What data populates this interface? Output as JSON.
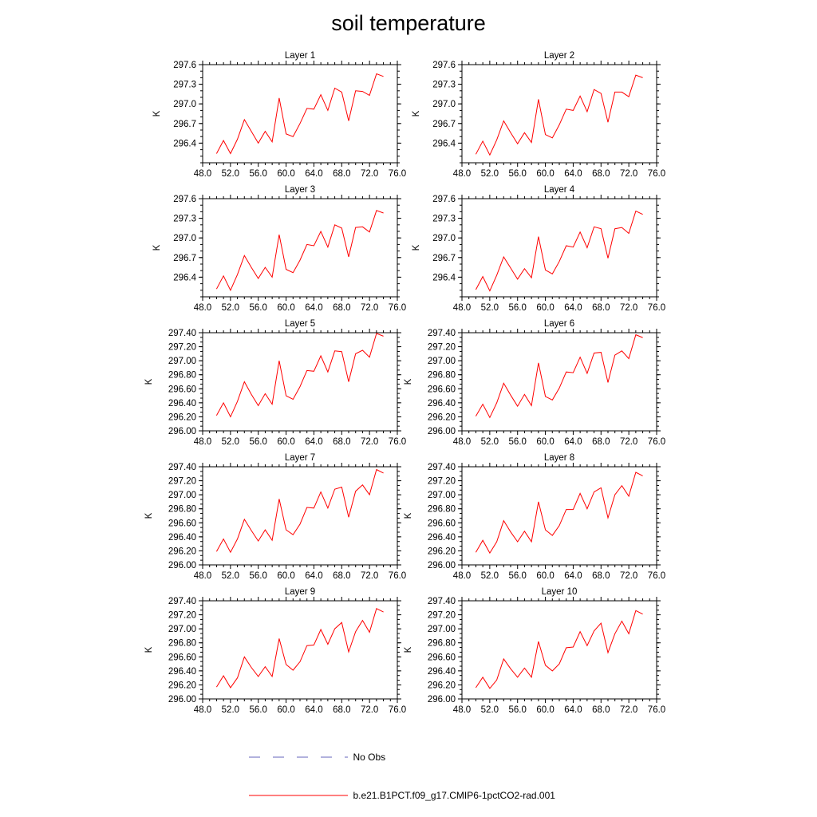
{
  "title": "soil temperature",
  "legend": {
    "items": [
      {
        "label": "No Obs",
        "color": "#6666bb",
        "dashed": true
      },
      {
        "label": "b.e21.B1PCT.f09_g17.CMIP6-1pctCO2-rad.001",
        "color": "#ff0000",
        "dashed": false
      }
    ]
  },
  "chart_data": [
    {
      "type": "line",
      "title": "Layer 1",
      "ylabel": "K",
      "xlim": [
        48,
        76
      ],
      "ylim": [
        296.1,
        297.6
      ],
      "xticks": [
        "48.0",
        "52.0",
        "56.0",
        "60.0",
        "64.0",
        "68.0",
        "72.0",
        "76.0"
      ],
      "yticks": [
        "296.4",
        "296.7",
        "297.0",
        "297.3",
        "297.6"
      ],
      "series": [
        {
          "color": "#ff0000",
          "x": [
            50,
            51,
            52,
            53,
            54,
            55,
            56,
            57,
            58,
            59,
            60,
            61,
            62,
            63,
            64,
            65,
            66,
            67,
            68,
            69,
            70,
            71,
            72,
            73,
            74
          ],
          "y": [
            296.24,
            296.44,
            296.24,
            296.46,
            296.76,
            296.58,
            296.4,
            296.58,
            296.42,
            297.09,
            296.54,
            296.5,
            296.7,
            296.93,
            296.92,
            297.14,
            296.9,
            297.24,
            297.18,
            296.74,
            297.2,
            297.19,
            297.13,
            297.46,
            297.42
          ]
        }
      ]
    },
    {
      "type": "line",
      "title": "Layer 2",
      "ylabel": "K",
      "xlim": [
        48,
        76
      ],
      "ylim": [
        296.1,
        297.6
      ],
      "xticks": [
        "48.0",
        "52.0",
        "56.0",
        "60.0",
        "64.0",
        "68.0",
        "72.0",
        "76.0"
      ],
      "yticks": [
        "296.4",
        "296.7",
        "297.0",
        "297.3",
        "297.6"
      ],
      "series": [
        {
          "color": "#ff0000",
          "x": [
            50,
            51,
            52,
            53,
            54,
            55,
            56,
            57,
            58,
            59,
            60,
            61,
            62,
            63,
            64,
            65,
            66,
            67,
            68,
            69,
            70,
            71,
            72,
            73,
            74
          ],
          "y": [
            296.23,
            296.43,
            296.22,
            296.45,
            296.74,
            296.56,
            296.39,
            296.56,
            296.41,
            297.07,
            296.53,
            296.48,
            296.68,
            296.92,
            296.9,
            297.12,
            296.88,
            297.22,
            297.16,
            296.72,
            297.18,
            297.18,
            297.11,
            297.44,
            297.4
          ]
        }
      ]
    },
    {
      "type": "line",
      "title": "Layer 3",
      "ylabel": "K",
      "xlim": [
        48,
        76
      ],
      "ylim": [
        296.1,
        297.6
      ],
      "xticks": [
        "48.0",
        "52.0",
        "56.0",
        "60.0",
        "64.0",
        "68.0",
        "72.0",
        "76.0"
      ],
      "yticks": [
        "296.4",
        "296.7",
        "297.0",
        "297.3",
        "297.6"
      ],
      "series": [
        {
          "color": "#ff0000",
          "x": [
            50,
            51,
            52,
            53,
            54,
            55,
            56,
            57,
            58,
            59,
            60,
            61,
            62,
            63,
            64,
            65,
            66,
            67,
            68,
            69,
            70,
            71,
            72,
            73,
            74
          ],
          "y": [
            296.22,
            296.42,
            296.2,
            296.44,
            296.73,
            296.55,
            296.38,
            296.55,
            296.4,
            297.05,
            296.52,
            296.47,
            296.66,
            296.9,
            296.88,
            297.1,
            296.86,
            297.2,
            297.15,
            296.71,
            297.16,
            297.17,
            297.09,
            297.42,
            297.38
          ]
        }
      ]
    },
    {
      "type": "line",
      "title": "Layer 4",
      "ylabel": "K",
      "xlim": [
        48,
        76
      ],
      "ylim": [
        296.1,
        297.6
      ],
      "xticks": [
        "48.0",
        "52.0",
        "56.0",
        "60.0",
        "64.0",
        "68.0",
        "72.0",
        "76.0"
      ],
      "yticks": [
        "296.4",
        "296.7",
        "297.0",
        "297.3",
        "297.6"
      ],
      "series": [
        {
          "color": "#ff0000",
          "x": [
            50,
            51,
            52,
            53,
            54,
            55,
            56,
            57,
            58,
            59,
            60,
            61,
            62,
            63,
            64,
            65,
            66,
            67,
            68,
            69,
            70,
            71,
            72,
            73,
            74
          ],
          "y": [
            296.21,
            296.41,
            296.19,
            296.43,
            296.71,
            296.54,
            296.37,
            296.53,
            296.39,
            297.02,
            296.51,
            296.45,
            296.64,
            296.88,
            296.86,
            297.09,
            296.85,
            297.17,
            297.14,
            296.69,
            297.14,
            297.16,
            297.07,
            297.41,
            297.36
          ]
        }
      ]
    },
    {
      "type": "line",
      "title": "Layer 5",
      "ylabel": "K",
      "xlim": [
        48,
        76
      ],
      "ylim": [
        296.0,
        297.4
      ],
      "xticks": [
        "48.0",
        "52.0",
        "56.0",
        "60.0",
        "64.0",
        "68.0",
        "72.0",
        "76.0"
      ],
      "yticks": [
        "296.00",
        "296.20",
        "296.40",
        "296.60",
        "296.80",
        "297.00",
        "297.20",
        "297.40"
      ],
      "series": [
        {
          "color": "#ff0000",
          "x": [
            50,
            51,
            52,
            53,
            54,
            55,
            56,
            57,
            58,
            59,
            60,
            61,
            62,
            63,
            64,
            65,
            66,
            67,
            68,
            69,
            70,
            71,
            72,
            73,
            74
          ],
          "y": [
            296.22,
            296.4,
            296.2,
            296.42,
            296.7,
            296.52,
            296.36,
            296.53,
            296.38,
            297.0,
            296.5,
            296.45,
            296.63,
            296.86,
            296.85,
            297.07,
            296.84,
            297.14,
            297.13,
            296.7,
            297.1,
            297.15,
            297.05,
            297.39,
            297.35
          ]
        }
      ]
    },
    {
      "type": "line",
      "title": "Layer 6",
      "ylabel": "K",
      "xlim": [
        48,
        76
      ],
      "ylim": [
        296.0,
        297.4
      ],
      "xticks": [
        "48.0",
        "52.0",
        "56.0",
        "60.0",
        "64.0",
        "68.0",
        "72.0",
        "76.0"
      ],
      "yticks": [
        "296.00",
        "296.20",
        "296.40",
        "296.60",
        "296.80",
        "297.00",
        "297.20",
        "297.40"
      ],
      "series": [
        {
          "color": "#ff0000",
          "x": [
            50,
            51,
            52,
            53,
            54,
            55,
            56,
            57,
            58,
            59,
            60,
            61,
            62,
            63,
            64,
            65,
            66,
            67,
            68,
            69,
            70,
            71,
            72,
            73,
            74
          ],
          "y": [
            296.21,
            296.38,
            296.19,
            296.4,
            296.68,
            296.51,
            296.35,
            296.52,
            296.36,
            296.97,
            296.49,
            296.44,
            296.61,
            296.84,
            296.83,
            297.05,
            296.82,
            297.11,
            297.12,
            296.69,
            297.08,
            297.14,
            297.03,
            297.37,
            297.33
          ]
        }
      ]
    },
    {
      "type": "line",
      "title": "Layer 7",
      "ylabel": "K",
      "xlim": [
        48,
        76
      ],
      "ylim": [
        296.0,
        297.4
      ],
      "xticks": [
        "48.0",
        "52.0",
        "56.0",
        "60.0",
        "64.0",
        "68.0",
        "72.0",
        "76.0"
      ],
      "yticks": [
        "296.00",
        "296.20",
        "296.40",
        "296.60",
        "296.80",
        "297.00",
        "297.20",
        "297.40"
      ],
      "series": [
        {
          "color": "#ff0000",
          "x": [
            50,
            51,
            52,
            53,
            54,
            55,
            56,
            57,
            58,
            59,
            60,
            61,
            62,
            63,
            64,
            65,
            66,
            67,
            68,
            69,
            70,
            71,
            72,
            73,
            74
          ],
          "y": [
            296.19,
            296.37,
            296.18,
            296.37,
            296.65,
            296.49,
            296.34,
            296.5,
            296.35,
            296.94,
            296.5,
            296.43,
            296.58,
            296.82,
            296.81,
            297.04,
            296.81,
            297.08,
            297.11,
            296.68,
            297.05,
            297.14,
            297.0,
            297.36,
            297.31
          ]
        }
      ]
    },
    {
      "type": "line",
      "title": "Layer 8",
      "ylabel": "K",
      "xlim": [
        48,
        76
      ],
      "ylim": [
        296.0,
        297.4
      ],
      "xticks": [
        "48.0",
        "52.0",
        "56.0",
        "60.0",
        "64.0",
        "68.0",
        "72.0",
        "76.0"
      ],
      "yticks": [
        "296.00",
        "296.20",
        "296.40",
        "296.60",
        "296.80",
        "297.00",
        "297.20",
        "297.40"
      ],
      "series": [
        {
          "color": "#ff0000",
          "x": [
            50,
            51,
            52,
            53,
            54,
            55,
            56,
            57,
            58,
            59,
            60,
            61,
            62,
            63,
            64,
            65,
            66,
            67,
            68,
            69,
            70,
            71,
            72,
            73,
            74
          ],
          "y": [
            296.18,
            296.35,
            296.17,
            296.33,
            296.63,
            296.47,
            296.33,
            296.48,
            296.33,
            296.9,
            296.5,
            296.42,
            296.56,
            296.79,
            296.79,
            297.02,
            296.8,
            297.04,
            297.1,
            296.67,
            297.0,
            297.13,
            296.98,
            297.32,
            297.27
          ]
        }
      ]
    },
    {
      "type": "line",
      "title": "Layer 9",
      "ylabel": "K",
      "xlim": [
        48,
        76
      ],
      "ylim": [
        296.0,
        297.4
      ],
      "xticks": [
        "48.0",
        "52.0",
        "56.0",
        "60.0",
        "64.0",
        "68.0",
        "72.0",
        "76.0"
      ],
      "yticks": [
        "296.00",
        "296.20",
        "296.40",
        "296.60",
        "296.80",
        "297.00",
        "297.20",
        "297.40"
      ],
      "series": [
        {
          "color": "#ff0000",
          "x": [
            50,
            51,
            52,
            53,
            54,
            55,
            56,
            57,
            58,
            59,
            60,
            61,
            62,
            63,
            64,
            65,
            66,
            67,
            68,
            69,
            70,
            71,
            72,
            73,
            74
          ],
          "y": [
            296.17,
            296.33,
            296.16,
            296.3,
            296.6,
            296.45,
            296.32,
            296.46,
            296.32,
            296.86,
            296.49,
            296.41,
            296.53,
            296.76,
            296.77,
            296.99,
            296.78,
            297.0,
            297.09,
            296.67,
            296.96,
            297.12,
            296.95,
            297.29,
            297.24
          ]
        }
      ]
    },
    {
      "type": "line",
      "title": "Layer 10",
      "ylabel": "K",
      "xlim": [
        48,
        76
      ],
      "ylim": [
        296.0,
        297.4
      ],
      "xticks": [
        "48.0",
        "52.0",
        "56.0",
        "60.0",
        "64.0",
        "68.0",
        "72.0",
        "76.0"
      ],
      "yticks": [
        "296.00",
        "296.20",
        "296.40",
        "296.60",
        "296.80",
        "297.00",
        "297.20",
        "297.40"
      ],
      "series": [
        {
          "color": "#ff0000",
          "x": [
            50,
            51,
            52,
            53,
            54,
            55,
            56,
            57,
            58,
            59,
            60,
            61,
            62,
            63,
            64,
            65,
            66,
            67,
            68,
            69,
            70,
            71,
            72,
            73,
            74
          ],
          "y": [
            296.16,
            296.31,
            296.15,
            296.27,
            296.57,
            296.43,
            296.31,
            296.44,
            296.31,
            296.82,
            296.48,
            296.4,
            296.5,
            296.73,
            296.74,
            296.96,
            296.76,
            296.97,
            297.08,
            296.66,
            296.93,
            297.11,
            296.93,
            297.26,
            297.21
          ]
        }
      ]
    }
  ]
}
